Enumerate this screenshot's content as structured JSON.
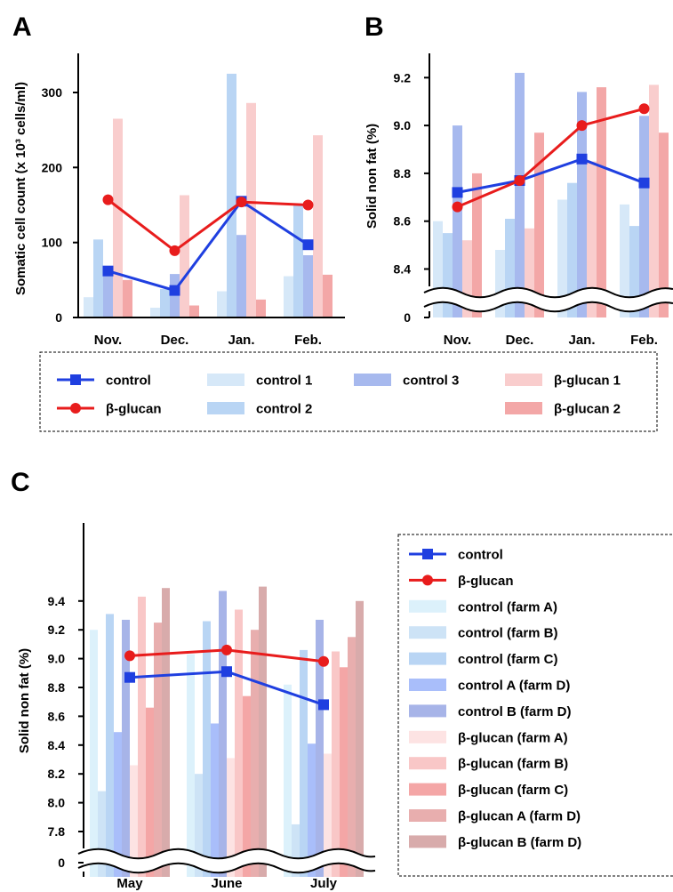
{
  "panels": {
    "A": {
      "letter": "A",
      "chart_data": {
        "type": "bar",
        "ylabel": "Somatic cell count (x 10³ cells/ml)",
        "ylim": [
          0,
          350
        ],
        "yticks": [
          0,
          100,
          200,
          300
        ],
        "categories": [
          "Nov.",
          "Dec.",
          "Jan.",
          "Feb."
        ],
        "bar_series": [
          {
            "name": "control  1",
            "color": "#d6e8f8",
            "values": [
              27,
              13,
              35,
              55
            ]
          },
          {
            "name": "control  2",
            "color": "#b9d5f4",
            "values": [
              104,
              38,
              325,
              150
            ]
          },
          {
            "name": "control  3",
            "color": "#a7b9ee",
            "values": [
              65,
              58,
              110,
              83
            ]
          },
          {
            "name": "β-glucan 1",
            "color": "#f9cdcd",
            "values": [
              265,
              163,
              286,
              243
            ]
          },
          {
            "name": "β-glucan 2",
            "color": "#f3a7a7",
            "values": [
              50,
              16,
              24,
              57
            ]
          }
        ],
        "line_series": [
          {
            "name": "control",
            "color": "#1f3fe0",
            "marker": "square",
            "values": [
              62,
              36,
              155,
              97
            ]
          },
          {
            "name": "β-glucan",
            "color": "#e81c1c",
            "marker": "circle",
            "values": [
              157,
              89,
              154,
              150
            ]
          }
        ]
      }
    },
    "B": {
      "letter": "B",
      "chart_data": {
        "type": "bar",
        "ylabel": "Solid non fat (%)",
        "ylim": [
          8.3,
          9.3
        ],
        "axis_break": true,
        "yticks": [
          "0",
          "8.4",
          "8.6",
          "8.8",
          "9.0",
          "9.2"
        ],
        "categories": [
          "Nov.",
          "Dec.",
          "Jan.",
          "Feb."
        ],
        "bar_series": [
          {
            "name": "control  1",
            "color": "#d6e8f8",
            "values": [
              8.6,
              8.48,
              8.69,
              8.67
            ]
          },
          {
            "name": "control  2",
            "color": "#b9d5f4",
            "values": [
              8.55,
              8.61,
              8.76,
              8.58
            ]
          },
          {
            "name": "control  3",
            "color": "#a7b9ee",
            "values": [
              9.0,
              9.22,
              9.14,
              9.04
            ]
          },
          {
            "name": "β-glucan 1",
            "color": "#f9cdcd",
            "values": [
              8.52,
              8.57,
              8.85,
              9.17
            ]
          },
          {
            "name": "β-glucan 2",
            "color": "#f3a7a7",
            "values": [
              8.8,
              8.97,
              9.16,
              8.97
            ]
          }
        ],
        "line_series": [
          {
            "name": "control",
            "color": "#1f3fe0",
            "marker": "square",
            "values": [
              8.72,
              8.77,
              8.86,
              8.76
            ]
          },
          {
            "name": "β-glucan",
            "color": "#e81c1c",
            "marker": "circle",
            "values": [
              8.66,
              8.77,
              9.0,
              9.07
            ]
          }
        ]
      }
    },
    "C": {
      "letter": "C",
      "chart_data": {
        "type": "bar",
        "ylabel": "Solid non fat (%)",
        "ylim": [
          7.7,
          9.5
        ],
        "axis_break": true,
        "yticks": [
          "0",
          "7.8",
          "8.0",
          "8.2",
          "8.4",
          "8.6",
          "8.8",
          "9.0",
          "9.2",
          "9.4"
        ],
        "categories": [
          "May",
          "June",
          "July"
        ],
        "bar_series": [
          {
            "name": "control (farm A)",
            "color": "#dcf1fb",
            "values": [
              9.2,
              9.03,
              8.82
            ]
          },
          {
            "name": "control (farm B)",
            "color": "#cde3f6",
            "values": [
              8.08,
              8.2,
              7.85
            ]
          },
          {
            "name": "control (farm C)",
            "color": "#b9d5f4",
            "values": [
              9.31,
              9.26,
              9.06
            ]
          },
          {
            "name": "control A (farm D)",
            "color": "#a9befa",
            "values": [
              8.49,
              8.55,
              8.41
            ]
          },
          {
            "name": "control B (farm D)",
            "color": "#a7b4e8",
            "values": [
              9.27,
              9.47,
              9.27
            ]
          },
          {
            "name": "β-glucan (farm A)",
            "color": "#fde3e3",
            "values": [
              8.26,
              8.31,
              8.34
            ]
          },
          {
            "name": "β-glucan (farm B)",
            "color": "#f9c7c7",
            "values": [
              9.43,
              9.34,
              9.05
            ]
          },
          {
            "name": "β-glucan (farm C)",
            "color": "#f4a6a6",
            "values": [
              8.66,
              8.74,
              8.94
            ]
          },
          {
            "name": "β-glucan A (farm D)",
            "color": "#e8aeae",
            "values": [
              9.25,
              9.2,
              9.15
            ]
          },
          {
            "name": "β-glucan B (farm D)",
            "color": "#d8abab",
            "values": [
              9.49,
              9.5,
              9.4
            ]
          }
        ],
        "line_series": [
          {
            "name": "control",
            "color": "#1f3fe0",
            "marker": "square",
            "values": [
              8.87,
              8.91,
              8.68
            ]
          },
          {
            "name": "β-glucan",
            "color": "#e81c1c",
            "marker": "circle",
            "values": [
              9.02,
              9.06,
              8.98
            ]
          }
        ]
      }
    }
  },
  "legend_AB": {
    "items": [
      {
        "label": "control",
        "kind": "line",
        "color": "#1f3fe0",
        "marker": "square"
      },
      {
        "label": "β-glucan",
        "kind": "line",
        "color": "#e81c1c",
        "marker": "circle"
      },
      {
        "label": "control  1",
        "kind": "bar",
        "color": "#d6e8f8"
      },
      {
        "label": "control  2",
        "kind": "bar",
        "color": "#b9d5f4"
      },
      {
        "label": "control  3",
        "kind": "bar",
        "color": "#a7b9ee"
      },
      {
        "label": "β-glucan 1",
        "kind": "bar",
        "color": "#f9cdcd"
      },
      {
        "label": "β-glucan 2",
        "kind": "bar",
        "color": "#f3a7a7"
      }
    ]
  },
  "legend_C": {
    "items": [
      {
        "label": "control",
        "kind": "line",
        "color": "#1f3fe0",
        "marker": "square"
      },
      {
        "label": "β-glucan",
        "kind": "line",
        "color": "#e81c1c",
        "marker": "circle"
      },
      {
        "label": "control (farm A)",
        "kind": "bar",
        "color": "#dcf1fb"
      },
      {
        "label": "control (farm B)",
        "kind": "bar",
        "color": "#cde3f6"
      },
      {
        "label": "control (farm C)",
        "kind": "bar",
        "color": "#b9d5f4"
      },
      {
        "label": "control A (farm D)",
        "kind": "bar",
        "color": "#a9befa"
      },
      {
        "label": "control B (farm D)",
        "kind": "bar",
        "color": "#a7b4e8"
      },
      {
        "label": "β-glucan (farm A)",
        "kind": "bar",
        "color": "#fde3e3"
      },
      {
        "label": "β-glucan (farm B)",
        "kind": "bar",
        "color": "#f9c7c7"
      },
      {
        "label": "β-glucan (farm C)",
        "kind": "bar",
        "color": "#f4a6a6"
      },
      {
        "label": "β-glucan A (farm D)",
        "kind": "bar",
        "color": "#e8aeae"
      },
      {
        "label": "β-glucan B (farm D)",
        "kind": "bar",
        "color": "#d8abab"
      }
    ]
  }
}
